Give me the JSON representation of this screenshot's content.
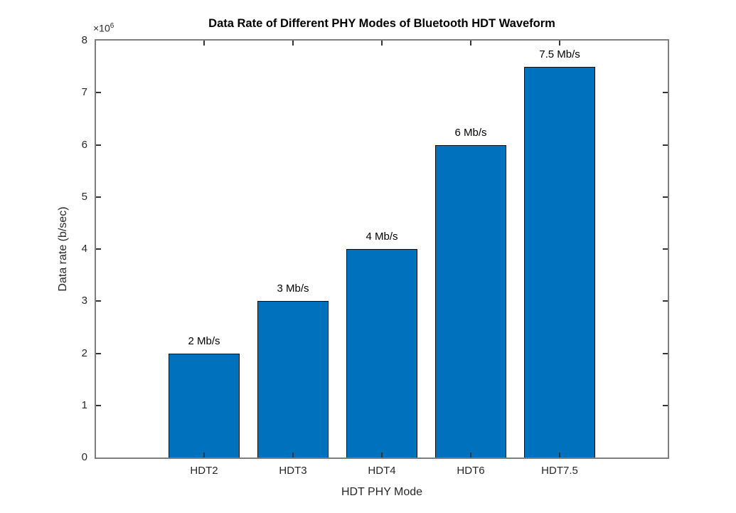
{
  "chart_data": {
    "type": "bar",
    "title": "Data Rate of Different PHY Modes of Bluetooth HDT Waveform",
    "categories": [
      "HDT2",
      "HDT3",
      "HDT4",
      "HDT6",
      "HDT7.5"
    ],
    "values": [
      2000000,
      3000000,
      4000000,
      6000000,
      7500000
    ],
    "bar_labels": [
      "2 Mb/s",
      "3 Mb/s",
      "4 Mb/s",
      "6 Mb/s",
      "7.5 Mb/s"
    ],
    "xlabel": "HDT PHY Mode",
    "ylabel": "Data rate (b/sec)",
    "ylim": [
      0,
      8000000
    ],
    "yticks": [
      0,
      1,
      2,
      3,
      4,
      5,
      6,
      7,
      8
    ],
    "ytick_scale": 1000000,
    "offset_base": "×10",
    "offset_exponent": "6",
    "grid": false,
    "legend": null,
    "bar_color": "#0072BD",
    "bar_edge_color": "#0d0d0d",
    "axis_box_color": "#7e7e7e",
    "tick_color": "#333333",
    "tick_label_color": "#262626",
    "title_color": "#000000"
  }
}
